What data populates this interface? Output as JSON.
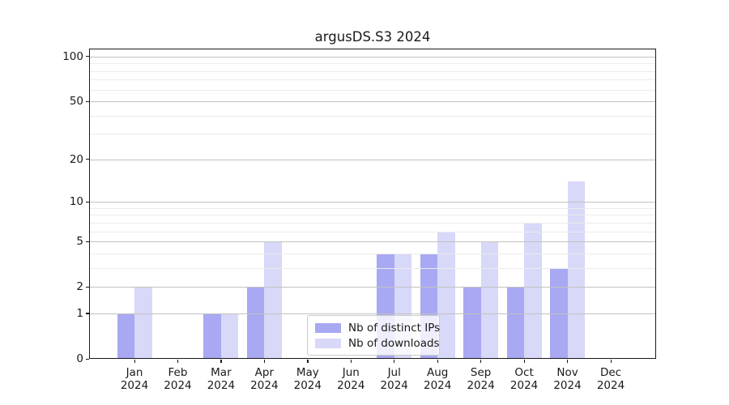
{
  "title": "argusDS.S3 2024",
  "chart_data": {
    "type": "bar",
    "title": "argusDS.S3 2024",
    "categories": [
      "Jan 2024",
      "Feb 2024",
      "Mar 2024",
      "Apr 2024",
      "May 2024",
      "Jun 2024",
      "Jul 2024",
      "Aug 2024",
      "Sep 2024",
      "Oct 2024",
      "Nov 2024",
      "Dec 2024"
    ],
    "series": [
      {
        "name": "Nb of distinct IPs",
        "color": "#a8a8f3",
        "values": [
          1,
          0,
          1,
          2,
          0,
          0,
          4,
          4,
          2,
          2,
          3,
          0
        ]
      },
      {
        "name": "Nb of downloads",
        "color": "#d8d8f8",
        "values": [
          2,
          0,
          1,
          5,
          0,
          0,
          4,
          6,
          5,
          7,
          14,
          0
        ]
      }
    ],
    "xlabel": "",
    "ylabel": "",
    "yscale": "log1p",
    "ylim": [
      0,
      113
    ],
    "yticks": [
      0,
      1,
      2,
      5,
      10,
      20,
      50,
      100
    ],
    "yticks_minor": [
      3,
      4,
      6,
      7,
      8,
      9,
      30,
      40,
      60,
      70,
      80,
      90
    ],
    "grid": true,
    "legend_position": "inside-bottom-center"
  },
  "colors": {
    "grid_major": "#c2c2c2",
    "grid_minor": "#ebebeb",
    "spine": "#1a1a1a",
    "background": "#ffffff"
  }
}
